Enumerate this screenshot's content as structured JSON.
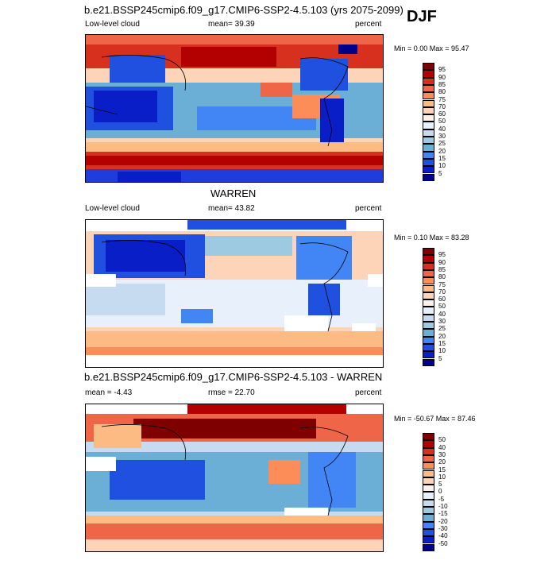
{
  "season": "DJF",
  "panels": [
    {
      "id": "model",
      "title": "b.e21.BSSP245cmip6.f09_g17.CMIP6-SSP2-4.5.103 (yrs 2075-2099)",
      "left_label": "Low-level cloud",
      "center_label": "mean=  39.39",
      "right_label": "percent",
      "minmax": "Min =   0.00 Max =  95.47",
      "legend_labels": [
        "95",
        "90",
        "85",
        "80",
        "75",
        "70",
        "60",
        "50",
        "40",
        "30",
        "25",
        "20",
        "15",
        "10",
        "5"
      ],
      "legend_colors": [
        "#7f0000",
        "#b30000",
        "#d7301f",
        "#ef6548",
        "#fc8d59",
        "#fdbb84",
        "#fdd4b8",
        "#fdf1e8",
        "#e8f0fb",
        "#c6dbef",
        "#9ecae1",
        "#6baed6",
        "#4285f4",
        "#2050e0",
        "#0a1ec8",
        "#00008b"
      ]
    },
    {
      "id": "obs",
      "title": "WARREN",
      "left_label": "Low-level cloud",
      "center_label": "mean=  43.82",
      "right_label": "percent",
      "minmax": "Min =   0.10 Max =  83.28",
      "legend_labels": [
        "95",
        "90",
        "85",
        "80",
        "75",
        "70",
        "60",
        "50",
        "40",
        "30",
        "25",
        "20",
        "15",
        "10",
        "5"
      ],
      "legend_colors": [
        "#7f0000",
        "#b30000",
        "#d7301f",
        "#ef6548",
        "#fc8d59",
        "#fdbb84",
        "#fdd4b8",
        "#fdf1e8",
        "#e8f0fb",
        "#c6dbef",
        "#9ecae1",
        "#6baed6",
        "#4285f4",
        "#2050e0",
        "#0a1ec8",
        "#00008b"
      ]
    },
    {
      "id": "diff",
      "title": "b.e21.BSSP245cmip6.f09_g17.CMIP6-SSP2-4.5.103 - WARREN",
      "left_label": "mean =  -4.43",
      "center_label": "rmse =  22.70",
      "right_label": "percent",
      "minmax": "Min = -50.67 Max =  87.46",
      "legend_labels": [
        "50",
        "40",
        "30",
        "20",
        "15",
        "10",
        "5",
        "0",
        "-5",
        "-10",
        "-15",
        "-20",
        "-30",
        "-40",
        "-50"
      ],
      "legend_colors": [
        "#7f0000",
        "#b30000",
        "#d7301f",
        "#ef6548",
        "#fc8d59",
        "#fdbb84",
        "#fdd4b8",
        "#fdf1e8",
        "#e8f0fb",
        "#c6dbef",
        "#9ecae1",
        "#6baed6",
        "#4285f4",
        "#2050e0",
        "#0a1ec8",
        "#00008b"
      ]
    }
  ]
}
